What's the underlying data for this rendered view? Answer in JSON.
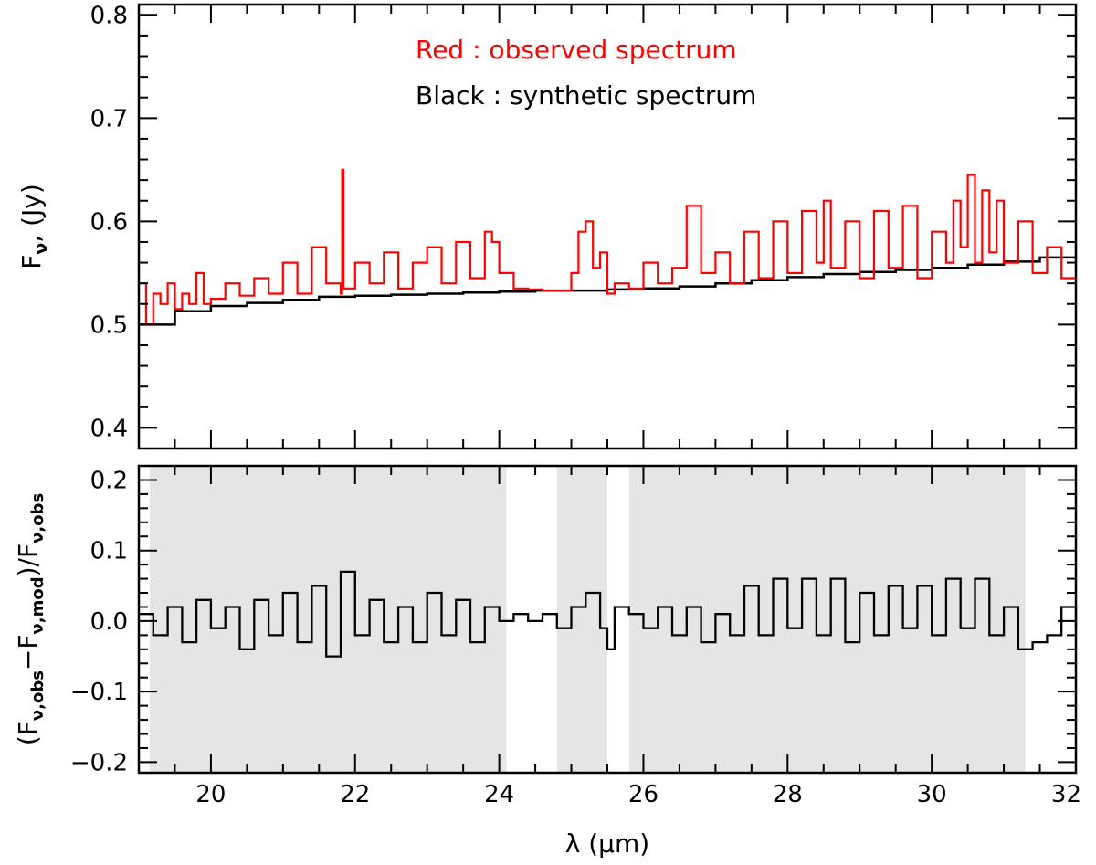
{
  "chart_data": [
    {
      "type": "line",
      "panel": "top",
      "ylabel_main": "F",
      "ylabel_sub": "ν",
      "ylabel_unit": ", (Jy)",
      "xlim": [
        19,
        32
      ],
      "ylim": [
        0.38,
        0.81
      ],
      "yticks": [
        0.4,
        0.5,
        0.6,
        0.7,
        0.8
      ],
      "ytick_labels": [
        "0.4",
        "0.5",
        "0.6",
        "0.7",
        "0.8"
      ],
      "legend": [
        {
          "text": "Red : observed spectrum",
          "color": "#ff0000"
        },
        {
          "text": "Black : synthetic spectrum",
          "color": "#000000"
        }
      ],
      "series": [
        {
          "name": "synthetic spectrum",
          "color": "#000000",
          "x": [
            19.0,
            19.5,
            20.0,
            20.5,
            21.0,
            21.5,
            22.0,
            22.5,
            23.0,
            23.5,
            24.0,
            24.5,
            25.0,
            25.5,
            26.0,
            26.5,
            27.0,
            27.5,
            28.0,
            28.5,
            29.0,
            29.5,
            30.0,
            30.5,
            31.0,
            31.5,
            32.0
          ],
          "y": [
            0.5,
            0.513,
            0.518,
            0.521,
            0.524,
            0.527,
            0.528,
            0.529,
            0.53,
            0.531,
            0.532,
            0.533,
            0.533,
            0.534,
            0.535,
            0.537,
            0.54,
            0.543,
            0.546,
            0.549,
            0.551,
            0.553,
            0.555,
            0.558,
            0.561,
            0.565,
            0.567
          ]
        },
        {
          "name": "observed spectrum",
          "color": "#ff0000",
          "x": [
            19.0,
            19.1,
            19.2,
            19.3,
            19.4,
            19.5,
            19.6,
            19.7,
            19.8,
            19.9,
            20.0,
            20.2,
            20.4,
            20.6,
            20.8,
            21.0,
            21.2,
            21.4,
            21.6,
            21.8,
            21.82,
            21.84,
            22.0,
            22.2,
            22.4,
            22.6,
            22.8,
            23.0,
            23.2,
            23.4,
            23.6,
            23.8,
            23.9,
            24.0,
            24.2,
            24.4,
            24.6,
            24.8,
            25.0,
            25.1,
            25.2,
            25.3,
            25.4,
            25.5,
            25.6,
            25.8,
            26.0,
            26.2,
            26.4,
            26.6,
            26.8,
            27.0,
            27.2,
            27.4,
            27.6,
            27.8,
            28.0,
            28.2,
            28.4,
            28.5,
            28.6,
            28.8,
            29.0,
            29.2,
            29.4,
            29.6,
            29.8,
            30.0,
            30.2,
            30.3,
            30.4,
            30.5,
            30.6,
            30.7,
            30.8,
            30.9,
            31.0,
            31.2,
            31.4,
            31.6,
            31.8,
            32.0
          ],
          "y": [
            0.54,
            0.5,
            0.53,
            0.52,
            0.54,
            0.515,
            0.53,
            0.52,
            0.55,
            0.52,
            0.525,
            0.54,
            0.528,
            0.545,
            0.53,
            0.56,
            0.53,
            0.575,
            0.54,
            0.53,
            0.65,
            0.535,
            0.56,
            0.54,
            0.57,
            0.535,
            0.56,
            0.575,
            0.54,
            0.58,
            0.545,
            0.59,
            0.58,
            0.55,
            0.535,
            0.534,
            0.533,
            0.533,
            0.55,
            0.59,
            0.6,
            0.555,
            0.57,
            0.53,
            0.54,
            0.535,
            0.56,
            0.54,
            0.555,
            0.615,
            0.55,
            0.57,
            0.54,
            0.59,
            0.545,
            0.6,
            0.55,
            0.61,
            0.56,
            0.62,
            0.555,
            0.6,
            0.545,
            0.61,
            0.555,
            0.615,
            0.545,
            0.59,
            0.56,
            0.62,
            0.575,
            0.645,
            0.56,
            0.63,
            0.57,
            0.62,
            0.56,
            0.6,
            0.55,
            0.575,
            0.545,
            0.58
          ]
        }
      ]
    },
    {
      "type": "line",
      "panel": "bottom",
      "xlabel": "λ (μm)",
      "ylabel_parts": [
        "(F",
        "ν,obs",
        "−F",
        "ν,mod",
        ")/F",
        "ν,obs"
      ],
      "xlim": [
        19,
        32
      ],
      "ylim": [
        -0.215,
        0.22
      ],
      "xticks": [
        20,
        22,
        24,
        26,
        28,
        30,
        32
      ],
      "xtick_labels": [
        "20",
        "22",
        "24",
        "26",
        "28",
        "30",
        "32"
      ],
      "yticks": [
        -0.2,
        -0.1,
        0.0,
        0.1,
        0.2
      ],
      "ytick_labels": [
        "−0.2",
        "−0.1",
        "0.0",
        "0.1",
        "0.2"
      ],
      "shaded_regions": [
        [
          19.15,
          24.1
        ],
        [
          24.8,
          25.5
        ],
        [
          25.8,
          31.3
        ]
      ],
      "series": [
        {
          "name": "residual",
          "color": "#000000",
          "x": [
            19.0,
            19.2,
            19.4,
            19.6,
            19.8,
            20.0,
            20.2,
            20.4,
            20.6,
            20.8,
            21.0,
            21.2,
            21.4,
            21.6,
            21.8,
            22.0,
            22.2,
            22.4,
            22.6,
            22.8,
            23.0,
            23.2,
            23.4,
            23.6,
            23.8,
            24.0,
            24.2,
            24.4,
            24.6,
            24.8,
            25.0,
            25.2,
            25.4,
            25.5,
            25.6,
            25.8,
            26.0,
            26.2,
            26.4,
            26.6,
            26.8,
            27.0,
            27.2,
            27.4,
            27.6,
            27.8,
            28.0,
            28.2,
            28.4,
            28.6,
            28.8,
            29.0,
            29.2,
            29.4,
            29.6,
            29.8,
            30.0,
            30.2,
            30.4,
            30.6,
            30.8,
            31.0,
            31.2,
            31.4,
            31.6,
            31.8,
            32.0
          ],
          "y": [
            0.01,
            -0.02,
            0.02,
            -0.03,
            0.03,
            -0.01,
            0.02,
            -0.04,
            0.03,
            -0.02,
            0.04,
            -0.03,
            0.05,
            -0.05,
            0.07,
            -0.02,
            0.03,
            -0.03,
            0.02,
            -0.03,
            0.04,
            -0.02,
            0.03,
            -0.03,
            0.02,
            0.0,
            0.01,
            0.0,
            0.01,
            -0.01,
            0.02,
            0.04,
            -0.01,
            -0.04,
            0.02,
            0.01,
            -0.01,
            0.02,
            -0.02,
            0.02,
            -0.03,
            0.01,
            -0.02,
            0.05,
            -0.02,
            0.06,
            -0.01,
            0.06,
            -0.02,
            0.06,
            -0.03,
            0.04,
            -0.02,
            0.05,
            -0.01,
            0.05,
            -0.02,
            0.06,
            -0.01,
            0.06,
            -0.02,
            0.02,
            -0.04,
            -0.03,
            -0.02,
            0.02,
            -0.01
          ]
        }
      ]
    }
  ]
}
